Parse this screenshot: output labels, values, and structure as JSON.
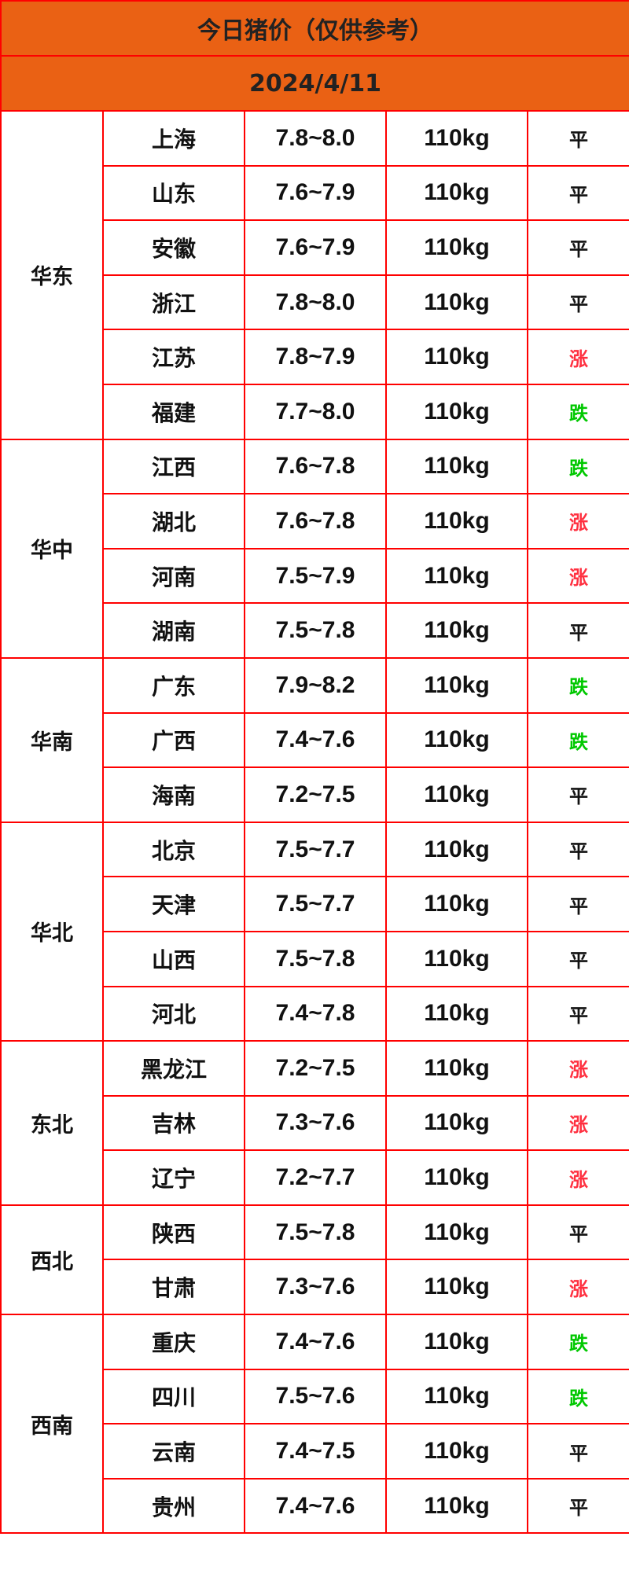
{
  "title": "今日猪价（仅供参考）",
  "date": "2024/4/11",
  "colors": {
    "header_bg": "#ea6114",
    "border": "#ff0000",
    "up": "#ff3040",
    "down": "#00c800",
    "flat": "#111111"
  },
  "regions": [
    {
      "name": "华东",
      "rows": [
        {
          "province": "上海",
          "price": "7.8~8.0",
          "weight": "110kg",
          "change": "平"
        },
        {
          "province": "山东",
          "price": "7.6~7.9",
          "weight": "110kg",
          "change": "平"
        },
        {
          "province": "安徽",
          "price": "7.6~7.9",
          "weight": "110kg",
          "change": "平"
        },
        {
          "province": "浙江",
          "price": "7.8~8.0",
          "weight": "110kg",
          "change": "平"
        },
        {
          "province": "江苏",
          "price": "7.8~7.9",
          "weight": "110kg",
          "change": "涨"
        },
        {
          "province": "福建",
          "price": "7.7~8.0",
          "weight": "110kg",
          "change": "跌"
        }
      ]
    },
    {
      "name": "华中",
      "rows": [
        {
          "province": "江西",
          "price": "7.6~7.8",
          "weight": "110kg",
          "change": "跌"
        },
        {
          "province": "湖北",
          "price": "7.6~7.8",
          "weight": "110kg",
          "change": "涨"
        },
        {
          "province": "河南",
          "price": "7.5~7.9",
          "weight": "110kg",
          "change": "涨"
        },
        {
          "province": "湖南",
          "price": "7.5~7.8",
          "weight": "110kg",
          "change": "平"
        }
      ]
    },
    {
      "name": "华南",
      "rows": [
        {
          "province": "广东",
          "price": "7.9~8.2",
          "weight": "110kg",
          "change": "跌"
        },
        {
          "province": "广西",
          "price": "7.4~7.6",
          "weight": "110kg",
          "change": "跌"
        },
        {
          "province": "海南",
          "price": "7.2~7.5",
          "weight": "110kg",
          "change": "平"
        }
      ]
    },
    {
      "name": "华北",
      "rows": [
        {
          "province": "北京",
          "price": "7.5~7.7",
          "weight": "110kg",
          "change": "平"
        },
        {
          "province": "天津",
          "price": "7.5~7.7",
          "weight": "110kg",
          "change": "平"
        },
        {
          "province": "山西",
          "price": "7.5~7.8",
          "weight": "110kg",
          "change": "平"
        },
        {
          "province": "河北",
          "price": "7.4~7.8",
          "weight": "110kg",
          "change": "平"
        }
      ]
    },
    {
      "name": "东北",
      "rows": [
        {
          "province": "黑龙江",
          "price": "7.2~7.5",
          "weight": "110kg",
          "change": "涨"
        },
        {
          "province": "吉林",
          "price": "7.3~7.6",
          "weight": "110kg",
          "change": "涨"
        },
        {
          "province": "辽宁",
          "price": "7.2~7.7",
          "weight": "110kg",
          "change": "涨"
        }
      ]
    },
    {
      "name": "西北",
      "rows": [
        {
          "province": "陕西",
          "price": "7.5~7.8",
          "weight": "110kg",
          "change": "平"
        },
        {
          "province": "甘肃",
          "price": "7.3~7.6",
          "weight": "110kg",
          "change": "涨"
        }
      ]
    },
    {
      "name": "西南",
      "rows": [
        {
          "province": "重庆",
          "price": "7.4~7.6",
          "weight": "110kg",
          "change": "跌"
        },
        {
          "province": "四川",
          "price": "7.5~7.6",
          "weight": "110kg",
          "change": "跌"
        },
        {
          "province": "云南",
          "price": "7.4~7.5",
          "weight": "110kg",
          "change": "平"
        },
        {
          "province": "贵州",
          "price": "7.4~7.6",
          "weight": "110kg",
          "change": "平"
        }
      ]
    }
  ]
}
